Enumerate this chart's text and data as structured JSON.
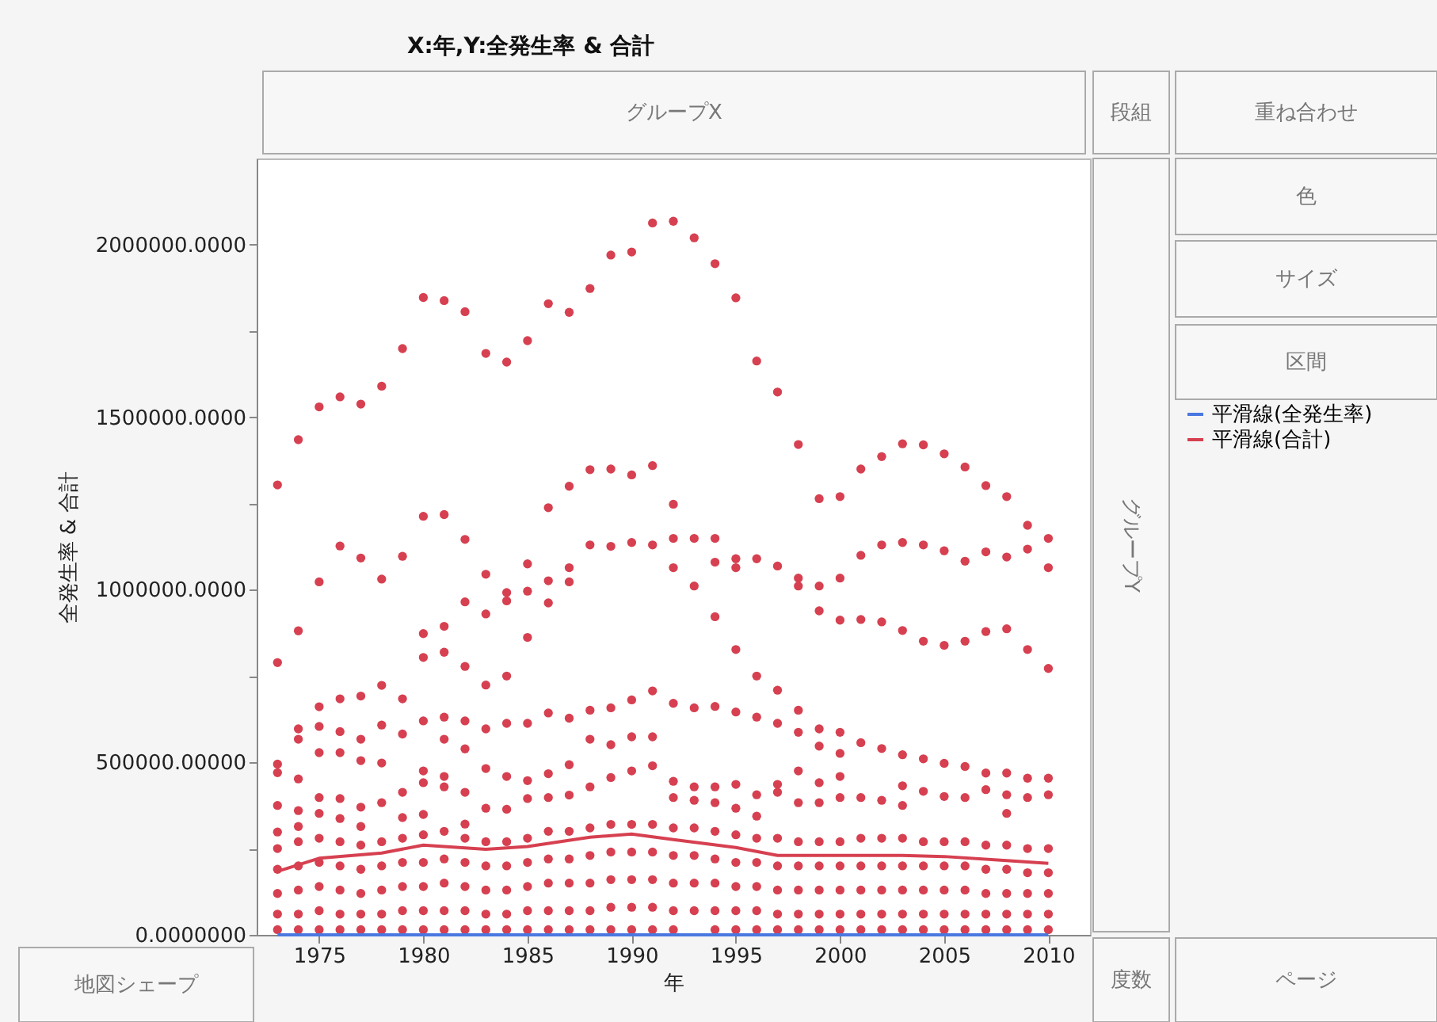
{
  "chart_data": {
    "type": "scatter",
    "title": "X:年,Y:全発生率 & 合計",
    "xlabel": "年",
    "ylabel": "全発生率 & 合計",
    "xlim": [
      1972,
      2012
    ],
    "xticks": [
      1975,
      1980,
      1985,
      1990,
      1995,
      2000,
      2005,
      2010
    ],
    "ylim": [
      0,
      2250000
    ],
    "yticks": [
      {
        "value": 0,
        "label": "0.0000000"
      },
      {
        "value": 250000,
        "label": null
      },
      {
        "value": 500000,
        "label": "500000.00000"
      },
      {
        "value": 750000,
        "label": null
      },
      {
        "value": 1000000,
        "label": "1000000.0000"
      },
      {
        "value": 1250000,
        "label": null
      },
      {
        "value": 1500000,
        "label": "1500000.0000"
      },
      {
        "value": 1750000,
        "label": null
      },
      {
        "value": 2000000,
        "label": "2000000.0000"
      }
    ],
    "grid": false,
    "legend": "right",
    "annotations": [
      "グループX",
      "段組",
      "重ね合わせ",
      "色",
      "サイズ",
      "区間",
      "グループY",
      "地図シェープ",
      "度数",
      "ページ"
    ],
    "series": [
      {
        "marker": "circle",
        "color": "#d64050",
        "x": [
          1973,
          1973,
          1973,
          1973,
          1973,
          1973,
          1973,
          1973,
          1973,
          1973,
          1973,
          1974,
          1974,
          1974,
          1974,
          1974,
          1974,
          1974,
          1974,
          1974,
          1974,
          1974,
          1974,
          1975,
          1975,
          1975,
          1975,
          1975,
          1975,
          1975,
          1975,
          1975,
          1975,
          1975,
          1975,
          1976,
          1976,
          1976,
          1976,
          1976,
          1976,
          1976,
          1976,
          1976,
          1976,
          1976,
          1976,
          1977,
          1977,
          1977,
          1977,
          1977,
          1977,
          1977,
          1977,
          1977,
          1977,
          1977,
          1977,
          1978,
          1978,
          1978,
          1978,
          1978,
          1978,
          1978,
          1978,
          1978,
          1978,
          1978,
          1979,
          1979,
          1979,
          1979,
          1979,
          1979,
          1979,
          1979,
          1979,
          1979,
          1979,
          1980,
          1980,
          1980,
          1980,
          1980,
          1980,
          1980,
          1980,
          1980,
          1980,
          1980,
          1980,
          1980,
          1981,
          1981,
          1981,
          1981,
          1981,
          1981,
          1981,
          1981,
          1981,
          1981,
          1981,
          1981,
          1981,
          1982,
          1982,
          1982,
          1982,
          1982,
          1982,
          1982,
          1982,
          1982,
          1982,
          1982,
          1982,
          1982,
          1983,
          1983,
          1983,
          1983,
          1983,
          1983,
          1983,
          1983,
          1983,
          1983,
          1983,
          1983,
          1984,
          1984,
          1984,
          1984,
          1984,
          1984,
          1984,
          1984,
          1984,
          1984,
          1984,
          1984,
          1985,
          1985,
          1985,
          1985,
          1985,
          1985,
          1985,
          1985,
          1985,
          1985,
          1985,
          1985,
          1986,
          1986,
          1986,
          1986,
          1986,
          1986,
          1986,
          1986,
          1986,
          1986,
          1986,
          1986,
          1987,
          1987,
          1987,
          1987,
          1987,
          1987,
          1987,
          1987,
          1987,
          1987,
          1987,
          1987,
          1988,
          1988,
          1988,
          1988,
          1988,
          1988,
          1988,
          1988,
          1988,
          1988,
          1988,
          1989,
          1989,
          1989,
          1989,
          1989,
          1989,
          1989,
          1989,
          1989,
          1989,
          1989,
          1990,
          1990,
          1990,
          1990,
          1990,
          1990,
          1990,
          1990,
          1990,
          1990,
          1990,
          1991,
          1991,
          1991,
          1991,
          1991,
          1991,
          1991,
          1991,
          1991,
          1991,
          1991,
          1992,
          1992,
          1992,
          1992,
          1992,
          1992,
          1992,
          1992,
          1992,
          1992,
          1992,
          1992,
          1993,
          1993,
          1993,
          1993,
          1993,
          1993,
          1993,
          1993,
          1993,
          1993,
          1994,
          1994,
          1994,
          1994,
          1994,
          1994,
          1994,
          1994,
          1994,
          1994,
          1994,
          1994,
          1995,
          1995,
          1995,
          1995,
          1995,
          1995,
          1995,
          1995,
          1995,
          1995,
          1995,
          1995,
          1996,
          1996,
          1996,
          1996,
          1996,
          1996,
          1996,
          1996,
          1996,
          1996,
          1996,
          1997,
          1997,
          1997,
          1997,
          1997,
          1997,
          1997,
          1997,
          1997,
          1997,
          1997,
          1998,
          1998,
          1998,
          1998,
          1998,
          1998,
          1998,
          1998,
          1998,
          1998,
          1998,
          1998,
          1999,
          1999,
          1999,
          1999,
          1999,
          1999,
          1999,
          1999,
          1999,
          1999,
          1999,
          1999,
          2000,
          2000,
          2000,
          2000,
          2000,
          2000,
          2000,
          2000,
          2000,
          2000,
          2000,
          2000,
          2001,
          2001,
          2001,
          2001,
          2001,
          2001,
          2001,
          2001,
          2001,
          2001,
          2002,
          2002,
          2002,
          2002,
          2002,
          2002,
          2002,
          2002,
          2002,
          2002,
          2003,
          2003,
          2003,
          2003,
          2003,
          2003,
          2003,
          2003,
          2003,
          2003,
          2003,
          2004,
          2004,
          2004,
          2004,
          2004,
          2004,
          2004,
          2004,
          2004,
          2004,
          2005,
          2005,
          2005,
          2005,
          2005,
          2005,
          2005,
          2005,
          2005,
          2005,
          2006,
          2006,
          2006,
          2006,
          2006,
          2006,
          2006,
          2006,
          2006,
          2006,
          2007,
          2007,
          2007,
          2007,
          2007,
          2007,
          2007,
          2007,
          2007,
          2007,
          2008,
          2008,
          2008,
          2008,
          2008,
          2008,
          2008,
          2008,
          2008,
          2008,
          2008,
          2009,
          2009,
          2009,
          2009,
          2009,
          2009,
          2009,
          2009,
          2009,
          2009,
          2010,
          2010,
          2010,
          2010,
          2010,
          2010,
          2010,
          2010,
          2010,
          2010
        ],
        "values": [
          1304000,
          789000,
          495000,
          470000,
          375000,
          298000,
          250000,
          190000,
          120000,
          60000,
          15000,
          1435000,
          881000,
          597000,
          567000,
          452000,
          360000,
          314000,
          270000,
          200000,
          130000,
          60000,
          15000,
          1530000,
          1023000,
          661000,
          604000,
          528000,
          398000,
          352000,
          280000,
          210000,
          140000,
          70000,
          15000,
          1559000,
          1127000,
          684000,
          589000,
          528000,
          395000,
          337000,
          270000,
          200000,
          130000,
          60000,
          15000,
          1538000,
          1092000,
          692000,
          567000,
          505000,
          370000,
          314000,
          260000,
          190000,
          120000,
          60000,
          15000,
          1590000,
          1031000,
          723000,
          608000,
          498000,
          383000,
          270000,
          200000,
          130000,
          60000,
          15000,
          1699000,
          1097000,
          684000,
          582000,
          413000,
          340000,
          280000,
          210000,
          140000,
          70000,
          15000,
          1847000,
          1213000,
          873000,
          804000,
          620000,
          475000,
          441000,
          349000,
          290000,
          210000,
          140000,
          70000,
          15000,
          1838000,
          1218000,
          894000,
          819000,
          631000,
          567000,
          459000,
          429000,
          300000,
          220000,
          150000,
          70000,
          15000,
          1806000,
          1146000,
          965000,
          778000,
          620000,
          539000,
          413000,
          321000,
          280000,
          210000,
          140000,
          70000,
          15000,
          1685000,
          1045000,
          930000,
          724000,
          597000,
          482000,
          367000,
          270000,
          200000,
          130000,
          60000,
          15000,
          1660000,
          992000,
          968000,
          750000,
          613000,
          459000,
          364000,
          270000,
          200000,
          130000,
          60000,
          15000,
          1722000,
          1075000,
          996000,
          862000,
          613000,
          447000,
          395000,
          280000,
          210000,
          140000,
          70000,
          15000,
          1829000,
          1238000,
          1026000,
          962000,
          643000,
          467000,
          398000,
          300000,
          220000,
          150000,
          70000,
          15000,
          1804000,
          1300000,
          1064000,
          1023000,
          628000,
          493000,
          405000,
          300000,
          220000,
          150000,
          70000,
          15000,
          1873000,
          1348000,
          1130000,
          651000,
          567000,
          429000,
          310000,
          230000,
          150000,
          70000,
          15000,
          1970000,
          1350000,
          1126000,
          658000,
          551000,
          456000,
          320000,
          240000,
          160000,
          80000,
          15000,
          1979000,
          1333000,
          1137000,
          681000,
          574000,
          475000,
          320000,
          240000,
          160000,
          80000,
          15000,
          2063000,
          1360000,
          1130000,
          707000,
          574000,
          490000,
          320000,
          240000,
          160000,
          80000,
          15000,
          2068000,
          1248000,
          1149000,
          1064000,
          671000,
          445000,
          398000,
          310000,
          230000,
          150000,
          70000,
          15000,
          2020000,
          1149000,
          1011000,
          658000,
          429000,
          390000,
          310000,
          230000,
          150000,
          70000,
          1945000,
          1149000,
          1080000,
          922000,
          662000,
          429000,
          383000,
          300000,
          220000,
          150000,
          70000,
          15000,
          1846000,
          1090000,
          1064000,
          827000,
          646000,
          436000,
          367000,
          290000,
          210000,
          140000,
          70000,
          15000,
          1663000,
          1090000,
          750000,
          631000,
          406000,
          344000,
          280000,
          210000,
          140000,
          70000,
          15000,
          1573000,
          1069000,
          709000,
          613000,
          436000,
          413000,
          280000,
          200000,
          130000,
          60000,
          15000,
          1421000,
          1034000,
          1011000,
          651000,
          587000,
          475000,
          383000,
          270000,
          200000,
          130000,
          60000,
          15000,
          1264000,
          1011000,
          939000,
          597000,
          547000,
          441000,
          383000,
          270000,
          200000,
          130000,
          60000,
          15000,
          1270000,
          1034000,
          912000,
          587000,
          526000,
          459000,
          398000,
          270000,
          200000,
          130000,
          60000,
          15000,
          1350000,
          1100000,
          914000,
          557000,
          398000,
          280000,
          200000,
          130000,
          60000,
          15000,
          1386000,
          1130000,
          907000,
          540000,
          390000,
          280000,
          200000,
          130000,
          60000,
          15000,
          1423000,
          1137000,
          882000,
          522000,
          432000,
          375000,
          280000,
          200000,
          130000,
          60000,
          15000,
          1420000,
          1130000,
          851000,
          510000,
          416000,
          270000,
          200000,
          130000,
          60000,
          15000,
          1394000,
          1113000,
          839000,
          497000,
          401000,
          270000,
          200000,
          130000,
          60000,
          15000,
          1356000,
          1083000,
          851000,
          488000,
          398000,
          270000,
          200000,
          130000,
          60000,
          15000,
          1302000,
          1110000,
          879000,
          469000,
          421000,
          260000,
          190000,
          120000,
          60000,
          15000,
          1270000,
          1095000,
          887000,
          469000,
          406000,
          352000,
          260000,
          190000,
          120000,
          60000,
          15000,
          1187000,
          1118000,
          827000,
          454000,
          398000,
          250000,
          180000,
          120000,
          60000,
          15000,
          1149000,
          1064000,
          772000,
          454000,
          406000,
          250000,
          180000,
          120000,
          60000,
          15000
        ]
      },
      {
        "type": "line",
        "marker": "none",
        "name": "平滑線(全発生率)",
        "color": "#4a78e0",
        "x": [
          1973,
          2010
        ],
        "values": [
          0,
          0
        ]
      },
      {
        "type": "line",
        "marker": "none",
        "name": "平滑線(合計)",
        "color": "#d64050",
        "x": [
          1973,
          1975,
          1978,
          1980,
          1983,
          1985,
          1988,
          1990,
          1992,
          1995,
          1997,
          2000,
          2003,
          2005,
          2008,
          2010
        ],
        "values": [
          184000,
          222000,
          237000,
          260000,
          248000,
          256000,
          283000,
          292000,
          276000,
          253000,
          230000,
          230000,
          230000,
          227000,
          215000,
          207000
        ]
      }
    ]
  }
}
